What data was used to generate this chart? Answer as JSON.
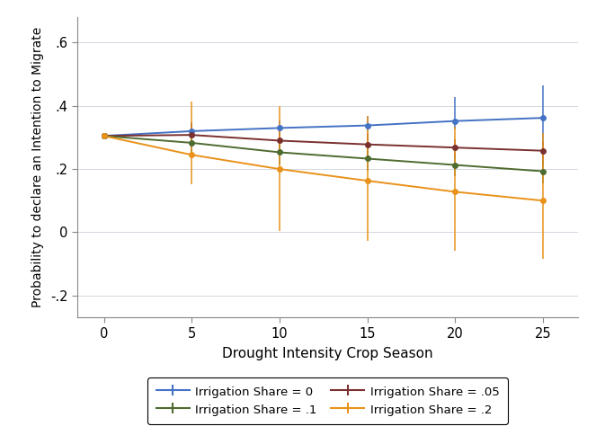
{
  "x": [
    0,
    5,
    10,
    15,
    20,
    25
  ],
  "series": [
    {
      "label": "Irrigation Share = 0",
      "color": "#4472C4",
      "y": [
        0.305,
        0.32,
        0.33,
        0.338,
        0.352,
        0.362
      ],
      "y_lo": [
        0.305,
        0.295,
        0.308,
        0.316,
        0.325,
        0.278
      ],
      "y_hi": [
        0.305,
        0.348,
        0.355,
        0.368,
        0.428,
        0.465
      ]
    },
    {
      "label": "Irrigation Share = .05",
      "color": "#7B3030",
      "y": [
        0.305,
        0.308,
        0.29,
        0.278,
        0.268,
        0.258
      ],
      "y_lo": [
        0.305,
        0.27,
        0.255,
        0.245,
        0.235,
        0.215
      ],
      "y_hi": [
        0.305,
        0.345,
        0.328,
        0.315,
        0.295,
        0.285
      ]
    },
    {
      "label": "Irrigation Share = .1",
      "color": "#4E6B30",
      "y": [
        0.305,
        0.283,
        0.253,
        0.233,
        0.213,
        0.193
      ],
      "y_lo": [
        0.305,
        0.245,
        0.215,
        0.195,
        0.178,
        0.155
      ],
      "y_hi": [
        0.305,
        0.315,
        0.288,
        0.265,
        0.243,
        0.225
      ]
    },
    {
      "label": "Irrigation Share = .2",
      "color": "#E8921A",
      "y": [
        0.305,
        0.245,
        0.2,
        0.163,
        0.128,
        0.1
      ],
      "y_lo": [
        0.305,
        0.152,
        0.005,
        -0.028,
        -0.06,
        -0.085
      ],
      "y_hi": [
        0.305,
        0.415,
        0.4,
        0.368,
        0.335,
        0.315
      ]
    }
  ],
  "xlabel": "Drought Intensity Crop Season",
  "ylabel": "Probability to declare an Intention to Migrate",
  "xlim": [
    -1.5,
    27
  ],
  "ylim": [
    -0.27,
    0.68
  ],
  "yticks": [
    -0.2,
    0.0,
    0.2,
    0.4,
    0.6
  ],
  "ytick_labels": [
    "-.2",
    "0",
    ".2",
    ".4",
    ".6"
  ],
  "xticks": [
    0,
    5,
    10,
    15,
    20,
    25
  ],
  "grid_color": "#D3D8E0",
  "background_color": "#FFFFFF",
  "capsize": 3,
  "legend_order": [
    0,
    2,
    1,
    3
  ],
  "legend_ncol": 2
}
